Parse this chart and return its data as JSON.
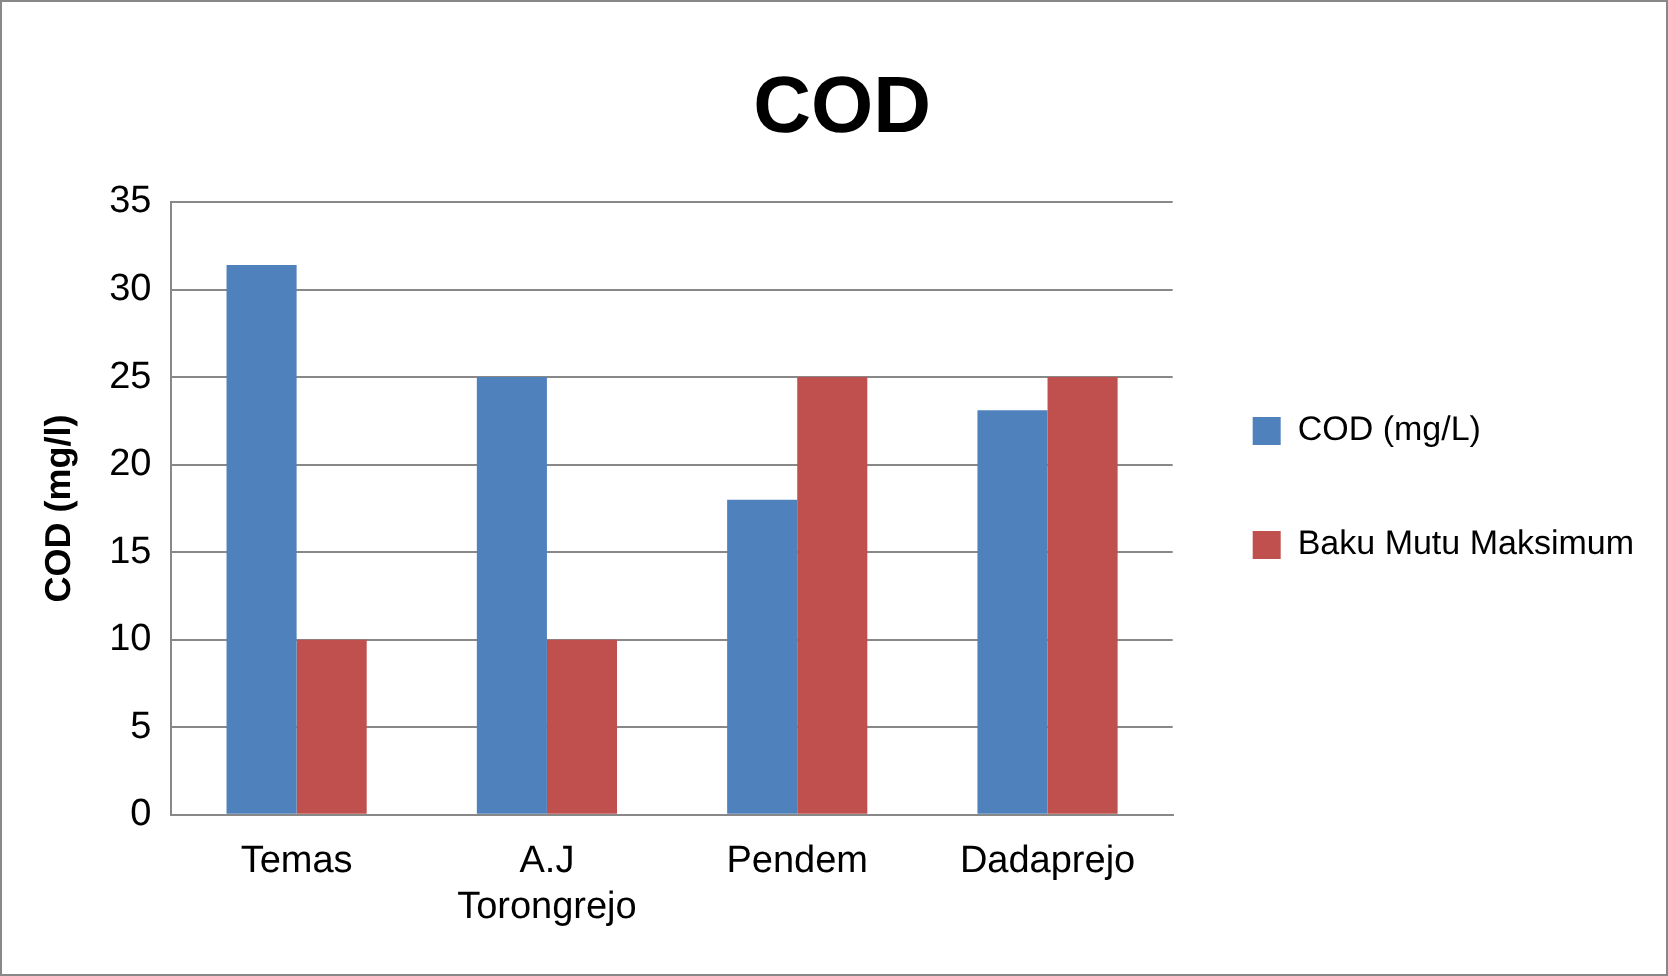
{
  "chart_data": {
    "type": "bar",
    "title": "COD",
    "ylabel": "COD (mg/l)",
    "categories": [
      "Temas",
      "A.J Torongrejo",
      "Pendem",
      "Dadaprejo"
    ],
    "series": [
      {
        "name": "COD (mg/L)",
        "color": "#4f81bd",
        "values": [
          31.4,
          25,
          18,
          23.1
        ]
      },
      {
        "name": "Baku Mutu Maksimum",
        "color": "#c0504d",
        "values": [
          10,
          10,
          25,
          25
        ]
      }
    ],
    "ylim": [
      0,
      35
    ],
    "yticks": [
      0,
      5,
      10,
      15,
      20,
      25,
      30,
      35
    ],
    "grid": "y",
    "legend": "right"
  }
}
